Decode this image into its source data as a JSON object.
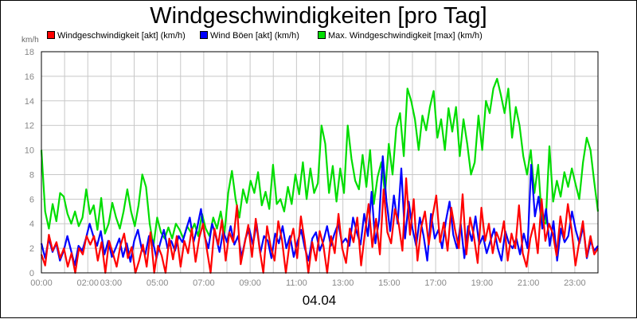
{
  "chart_data": {
    "type": "line",
    "title": "Windgeschwindigkeiten [pro Tag]",
    "ylabel": "km/h",
    "xlabel": "04.04",
    "ylim": [
      0,
      18
    ],
    "yticks": [
      "0",
      "2",
      "4",
      "6",
      "8",
      "10",
      "12",
      "14",
      "16",
      "18"
    ],
    "xticks": [
      "00:00",
      "02:00",
      "03:00",
      "05:00",
      "07:00",
      "09:00",
      "11:00",
      "13:00",
      "15:00",
      "17:00",
      "19:00",
      "21:00",
      "23:00"
    ],
    "xtick_hours": [
      0,
      2,
      3,
      5,
      7,
      9,
      11,
      13,
      15,
      17,
      19,
      21,
      23
    ],
    "x_range_hours": [
      0,
      24
    ],
    "grid": true,
    "legend_position": "top",
    "series": [
      {
        "name": "Windgeschwindigkeit [akt] (km/h)",
        "color": "#ff0000",
        "values": [
          1.5,
          0.6,
          3.1,
          1.8,
          2.5,
          1.2,
          2.0,
          0.5,
          1.6,
          0.0,
          2.0,
          1.5,
          3.0,
          2.3,
          3.0,
          1.0,
          2.5,
          0.0,
          2.6,
          1.6,
          0.5,
          2.2,
          3.2,
          1.2,
          2.1,
          0.0,
          1.0,
          2.3,
          0.5,
          3.3,
          0.0,
          2.2,
          1.4,
          0.0,
          2.8,
          1.1,
          3.0,
          0.5,
          2.6,
          1.6,
          3.6,
          0.9,
          2.9,
          4.0,
          1.9,
          0.0,
          3.6,
          2.3,
          4.3,
          1.0,
          3.3,
          2.5,
          5.5,
          0.7,
          2.3,
          3.9,
          1.3,
          4.4,
          2.0,
          0.0,
          3.8,
          2.1,
          1.0,
          4.2,
          2.6,
          0.0,
          2.4,
          3.6,
          1.2,
          4.6,
          2.6,
          0.0,
          2.5,
          1.0,
          3.4,
          2.2,
          0.0,
          3.0,
          1.6,
          4.8,
          2.0,
          0.8,
          3.6,
          2.5,
          4.5,
          0.6,
          3.2,
          5.6,
          2.1,
          4.4,
          1.5,
          6.8,
          3.3,
          2.4,
          5.2,
          4.0,
          1.8,
          7.7,
          3.1,
          6.0,
          1.0,
          3.7,
          5.0,
          2.3,
          4.6,
          6.3,
          2.5,
          4.1,
          1.8,
          5.3,
          3.5,
          2.0,
          6.4,
          1.5,
          4.5,
          3.0,
          0.8,
          5.3,
          2.6,
          4.0,
          1.6,
          3.3,
          2.5,
          4.2,
          1.0,
          3.2,
          2.0,
          5.5,
          1.6,
          0.5,
          2.8,
          4.0,
          1.6,
          6.0,
          2.6,
          4.0,
          3.2,
          1.4,
          4.6,
          2.8,
          5.6,
          3.5,
          0.6,
          2.5,
          4.2,
          1.3,
          3.0,
          1.5,
          2.0
        ]
      },
      {
        "name": "Wind Böen [akt] (km/h)",
        "color": "#0000ff",
        "values": [
          2.4,
          1.2,
          2.8,
          1.7,
          2.4,
          1.0,
          1.8,
          3.0,
          1.8,
          0.6,
          2.2,
          1.8,
          2.8,
          4.0,
          3.0,
          2.2,
          3.4,
          1.5,
          2.6,
          1.3,
          2.0,
          2.8,
          1.3,
          2.4,
          0.9,
          2.6,
          3.5,
          2.0,
          1.5,
          3.0,
          2.6,
          1.2,
          2.4,
          3.5,
          2.0,
          2.6,
          1.8,
          3.0,
          2.5,
          3.5,
          4.5,
          2.5,
          3.7,
          5.2,
          3.0,
          2.0,
          4.0,
          3.0,
          1.7,
          3.4,
          2.5,
          3.8,
          2.3,
          3.0,
          1.3,
          2.8,
          3.6,
          2.3,
          4.0,
          1.6,
          3.0,
          2.6,
          1.2,
          3.2,
          2.4,
          3.8,
          2.0,
          3.0,
          1.3,
          2.5,
          3.5,
          2.0,
          1.0,
          2.8,
          3.3,
          1.8,
          2.6,
          3.8,
          2.2,
          3.2,
          4.0,
          2.4,
          2.8,
          2.2,
          4.5,
          3.3,
          2.3,
          4.8,
          3.0,
          6.6,
          2.4,
          4.3,
          9.5,
          5.8,
          3.4,
          6.3,
          4.0,
          8.5,
          2.8,
          5.8,
          3.6,
          2.2,
          4.5,
          3.0,
          1.0,
          4.8,
          2.8,
          3.5,
          2.0,
          4.2,
          5.8,
          3.1,
          2.0,
          4.0,
          1.2,
          3.8,
          2.6,
          4.6,
          2.3,
          3.0,
          1.6,
          2.6,
          3.6,
          2.0,
          1.0,
          3.4,
          2.4,
          2.0,
          2.8,
          1.5,
          3.2,
          2.0,
          8.8,
          4.6,
          6.2,
          3.6,
          5.2,
          2.2,
          4.2,
          1.0,
          3.6,
          2.5,
          3.0,
          5.0,
          3.5,
          2.4,
          3.8,
          1.2,
          2.6,
          1.8,
          2.2
        ]
      },
      {
        "name": "Max. Windgeschwindigkeit [max] (km/h)",
        "color": "#00dd00",
        "values": [
          10.0,
          5.0,
          3.6,
          5.6,
          4.2,
          6.5,
          6.2,
          4.8,
          4.0,
          5.0,
          3.8,
          4.5,
          6.8,
          4.8,
          5.5,
          3.5,
          6.1,
          3.2,
          4.0,
          5.7,
          4.5,
          3.6,
          5.0,
          6.8,
          5.0,
          3.8,
          5.5,
          8.0,
          7.0,
          4.0,
          2.2,
          4.5,
          3.3,
          2.8,
          3.7,
          2.8,
          4.0,
          3.5,
          2.8,
          3.8,
          3.3,
          4.0,
          3.0,
          4.8,
          3.6,
          3.0,
          4.5,
          3.6,
          5.0,
          3.2,
          6.5,
          8.3,
          6.0,
          4.5,
          6.8,
          5.7,
          7.5,
          6.5,
          8.2,
          5.5,
          6.6,
          5.2,
          8.8,
          5.6,
          6.0,
          5.0,
          7.0,
          5.6,
          8.0,
          6.4,
          9.0,
          6.0,
          8.5,
          6.5,
          7.3,
          12.0,
          10.5,
          6.5,
          8.7,
          5.8,
          8.5,
          6.5,
          12.0,
          9.3,
          7.5,
          6.8,
          9.6,
          7.0,
          10.0,
          5.6,
          7.8,
          9.0,
          6.4,
          10.5,
          8.0,
          11.8,
          13.0,
          9.5,
          15.0,
          14.0,
          12.5,
          10.0,
          12.8,
          11.6,
          13.5,
          14.8,
          11.0,
          12.5,
          10.0,
          13.4,
          11.5,
          13.5,
          9.5,
          12.5,
          10.5,
          8.0,
          9.0,
          12.8,
          10.0,
          14.0,
          13.0,
          15.0,
          15.8,
          14.5,
          13.0,
          15.0,
          11.0,
          13.5,
          12.0,
          9.5,
          8.0,
          10.0,
          6.5,
          8.8,
          4.2,
          4.0,
          10.3,
          5.8,
          7.5,
          6.2,
          8.2,
          7.0,
          8.5,
          7.2,
          6.0,
          9.0,
          11.0,
          10.0,
          7.4,
          5.0
        ]
      }
    ]
  }
}
